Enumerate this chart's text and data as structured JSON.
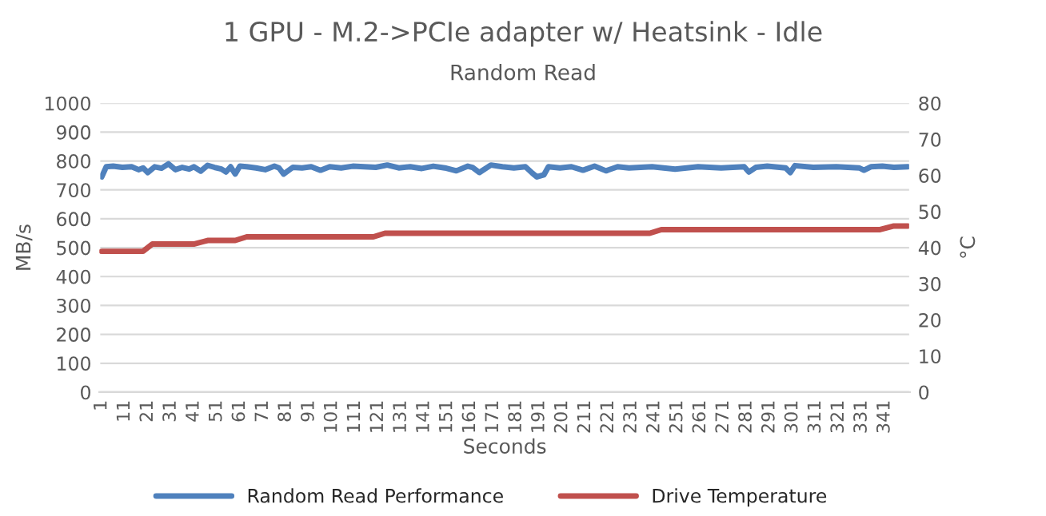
{
  "chart_data": {
    "type": "line",
    "title": "1 GPU - M.2->PCIe adapter w/ Heatsink - Idle",
    "subtitle": "Random Read",
    "xlabel": "Seconds",
    "ylabel": "MB/s",
    "y2label": "°C",
    "xlim": [
      0,
      352
    ],
    "xticks": [
      1,
      11,
      21,
      31,
      41,
      51,
      61,
      71,
      81,
      91,
      101,
      111,
      121,
      131,
      141,
      151,
      161,
      171,
      181,
      191,
      201,
      211,
      221,
      231,
      241,
      251,
      261,
      271,
      281,
      291,
      301,
      311,
      321,
      331,
      341
    ],
    "ylim": [
      0,
      1000
    ],
    "yticks": [
      0,
      100,
      200,
      300,
      400,
      500,
      600,
      700,
      800,
      900,
      1000
    ],
    "y2lim": [
      0,
      80
    ],
    "y2ticks": [
      0,
      10,
      20,
      30,
      40,
      50,
      60,
      70,
      80
    ],
    "grid": "y",
    "legend": "bottom",
    "marker": "none",
    "line_style": "solid",
    "series": [
      {
        "name": "Random Read Performance",
        "color": "#4f81bd",
        "x": [
          1,
          3,
          6,
          10,
          14,
          17,
          19,
          21,
          24,
          27,
          30,
          33,
          36,
          39,
          41,
          44,
          47,
          50,
          53,
          55,
          57,
          59,
          61,
          64,
          68,
          72,
          76,
          78,
          80,
          84,
          88,
          92,
          96,
          100,
          105,
          110,
          115,
          120,
          125,
          130,
          135,
          140,
          145,
          150,
          155,
          160,
          162,
          165,
          170,
          175,
          180,
          185,
          188,
          190,
          193,
          195,
          200,
          205,
          210,
          215,
          220,
          225,
          230,
          240,
          250,
          260,
          270,
          280,
          282,
          285,
          290,
          298,
          300,
          302,
          310,
          320,
          330,
          332,
          335,
          340,
          345,
          351
        ],
        "values": [
          745,
          780,
          782,
          778,
          780,
          770,
          776,
          760,
          780,
          775,
          790,
          770,
          778,
          772,
          780,
          765,
          785,
          778,
          772,
          762,
          780,
          755,
          782,
          780,
          776,
          770,
          782,
          776,
          755,
          778,
          776,
          780,
          768,
          780,
          776,
          782,
          780,
          778,
          786,
          776,
          780,
          774,
          782,
          776,
          766,
          782,
          778,
          760,
          786,
          780,
          776,
          780,
          758,
          745,
          752,
          780,
          776,
          780,
          768,
          782,
          766,
          780,
          776,
          780,
          772,
          780,
          776,
          780,
          762,
          778,
          782,
          776,
          760,
          784,
          778,
          780,
          776,
          768,
          780,
          782,
          778,
          780
        ]
      },
      {
        "name": "Drive Temperature",
        "color": "#c0504d",
        "x": [
          1,
          19,
          23,
          41,
          47,
          59,
          64,
          119,
          124,
          239,
          244,
          339,
          345,
          351
        ],
        "values": [
          39,
          39,
          41,
          41,
          42,
          42,
          43,
          43,
          44,
          44,
          45,
          45,
          46,
          46
        ],
        "axis": "y2"
      }
    ]
  }
}
